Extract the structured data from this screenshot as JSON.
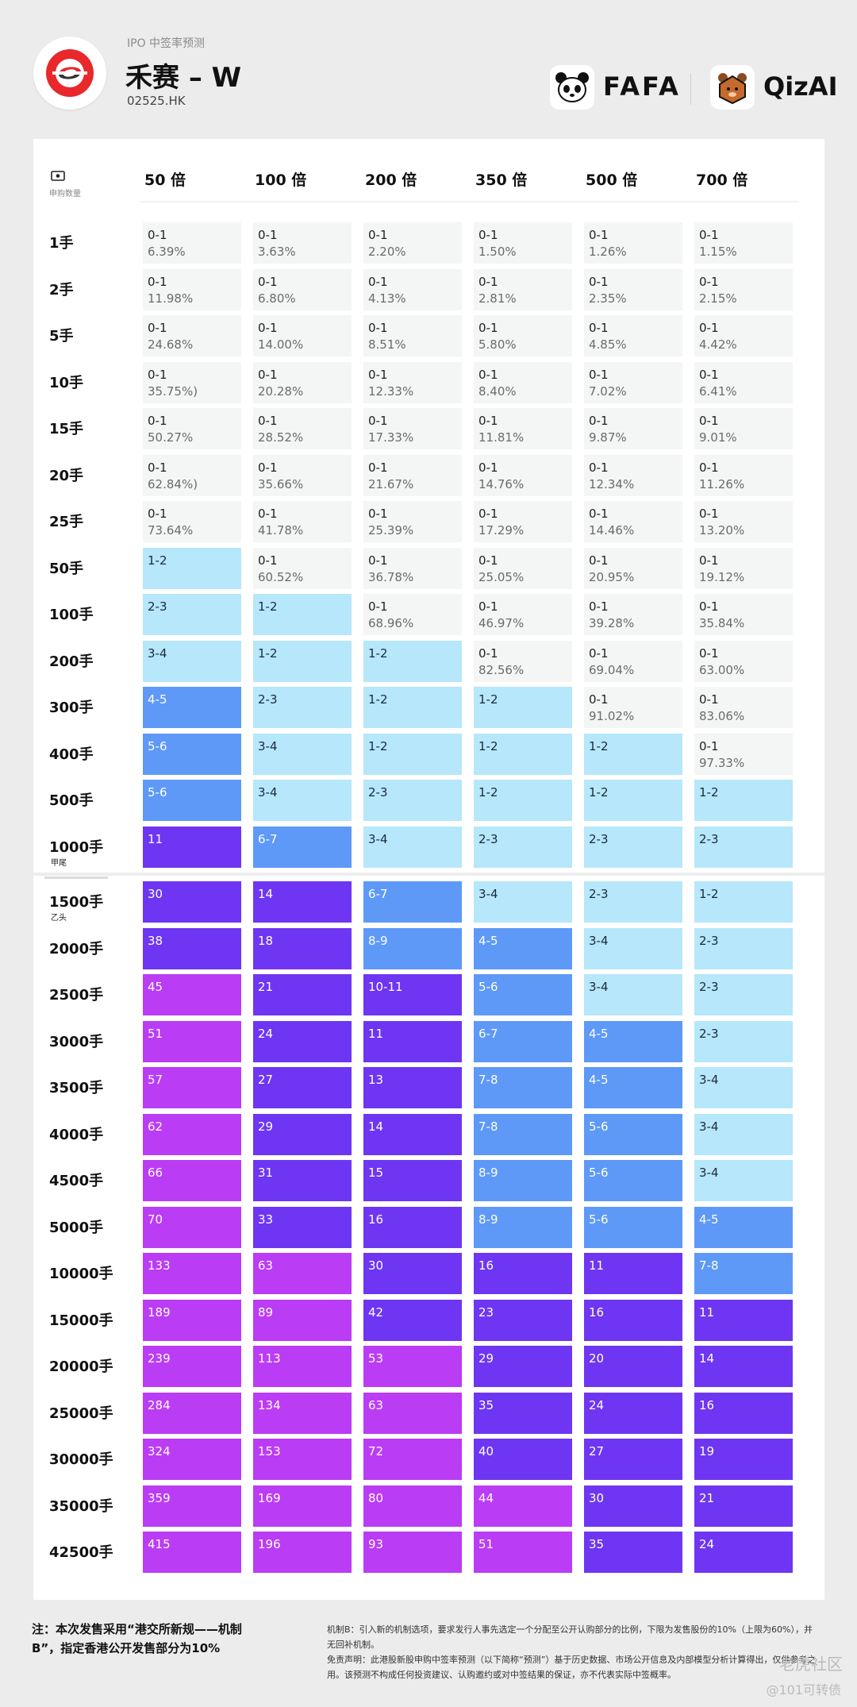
{
  "header": {
    "subtitle": "IPO 中签率预测",
    "title": "禾赛 – W",
    "code": "02525.HK",
    "brand1": "FAFA",
    "brand2": "QizAI"
  },
  "table": {
    "header_label": "申购数量",
    "columns": [
      "50 倍",
      "100 倍",
      "200 倍",
      "350 倍",
      "500 倍",
      "700 倍"
    ],
    "rows": [
      {
        "label": "1手",
        "note": "",
        "cells": [
          "0-1|6.39%",
          "0-1|3.63%",
          "0-1|2.20%",
          "0-1|1.50%",
          "0-1|1.26%",
          "0-1|1.15%"
        ]
      },
      {
        "label": "2手",
        "note": "",
        "cells": [
          "0-1|11.98%",
          "0-1|6.80%",
          "0-1|4.13%",
          "0-1|2.81%",
          "0-1|2.35%",
          "0-1|2.15%"
        ]
      },
      {
        "label": "5手",
        "note": "",
        "cells": [
          "0-1|24.68%",
          "0-1|14.00%",
          "0-1|8.51%",
          "0-1|5.80%",
          "0-1|4.85%",
          "0-1|4.42%"
        ]
      },
      {
        "label": "10手",
        "note": "",
        "cells": [
          "0-1|35.75%)",
          "0-1|20.28%",
          "0-1|12.33%",
          "0-1|8.40%",
          "0-1|7.02%",
          "0-1|6.41%"
        ]
      },
      {
        "label": "15手",
        "note": "",
        "cells": [
          "0-1|50.27%",
          "0-1|28.52%",
          "0-1|17.33%",
          "0-1|11.81%",
          "0-1|9.87%",
          "0-1|9.01%"
        ]
      },
      {
        "label": "20手",
        "note": "",
        "cells": [
          "0-1|62.84%)",
          "0-1|35.66%",
          "0-1|21.67%",
          "0-1|14.76%",
          "0-1|12.34%",
          "0-1|11.26%"
        ]
      },
      {
        "label": "25手",
        "note": "",
        "cells": [
          "0-1|73.64%",
          "0-1|41.78%",
          "0-1|25.39%",
          "0-1|17.29%",
          "0-1|14.46%",
          "0-1|13.20%"
        ]
      },
      {
        "label": "50手",
        "note": "",
        "cells": [
          "1-2",
          "0-1|60.52%",
          "0-1|36.78%",
          "0-1|25.05%",
          "0-1|20.95%",
          "0-1|19.12%"
        ]
      },
      {
        "label": "100手",
        "note": "",
        "cells": [
          "2-3",
          "1-2",
          "0-1|68.96%",
          "0-1|46.97%",
          "0-1|39.28%",
          "0-1|35.84%"
        ]
      },
      {
        "label": "200手",
        "note": "",
        "cells": [
          "3-4",
          "1-2",
          "1-2",
          "0-1|82.56%",
          "0-1|69.04%",
          "0-1|63.00%"
        ]
      },
      {
        "label": "300手",
        "note": "",
        "cells": [
          "4-5",
          "2-3",
          "1-2",
          "1-2",
          "0-1|91.02%",
          "0-1|83.06%"
        ]
      },
      {
        "label": "400手",
        "note": "",
        "cells": [
          "5-6",
          "3-4",
          "1-2",
          "1-2",
          "1-2",
          "0-1|97.33%"
        ]
      },
      {
        "label": "500手",
        "note": "",
        "cells": [
          "5-6",
          "3-4",
          "2-3",
          "1-2",
          "1-2",
          "1-2"
        ]
      },
      {
        "label": "1000手",
        "note": "甲尾",
        "cells": [
          "11",
          "6-7",
          "3-4",
          "2-3",
          "2-3",
          "2-3"
        ]
      },
      {
        "label": "1500手",
        "note": "乙头",
        "cells": [
          "30",
          "14",
          "6-7",
          "3-4",
          "2-3",
          "1-2"
        ]
      },
      {
        "label": "2000手",
        "note": "",
        "cells": [
          "38",
          "18",
          "8-9",
          "4-5",
          "3-4",
          "2-3"
        ]
      },
      {
        "label": "2500手",
        "note": "",
        "cells": [
          "45",
          "21",
          "10-11",
          "5-6",
          "3-4",
          "2-3"
        ]
      },
      {
        "label": "3000手",
        "note": "",
        "cells": [
          "51",
          "24",
          "11",
          "6-7",
          "4-5",
          "2-3"
        ]
      },
      {
        "label": "3500手",
        "note": "",
        "cells": [
          "57",
          "27",
          "13",
          "7-8",
          "4-5",
          "3-4"
        ]
      },
      {
        "label": "4000手",
        "note": "",
        "cells": [
          "62",
          "29",
          "14",
          "7-8",
          "5-6",
          "3-4"
        ]
      },
      {
        "label": "4500手",
        "note": "",
        "cells": [
          "66",
          "31",
          "15",
          "8-9",
          "5-6",
          "3-4"
        ]
      },
      {
        "label": "5000手",
        "note": "",
        "cells": [
          "70",
          "33",
          "16",
          "8-9",
          "5-6",
          "4-5"
        ]
      },
      {
        "label": "10000手",
        "note": "",
        "cells": [
          "133",
          "63",
          "30",
          "16",
          "11",
          "7-8"
        ]
      },
      {
        "label": "15000手",
        "note": "",
        "cells": [
          "189",
          "89",
          "42",
          "23",
          "16",
          "11"
        ]
      },
      {
        "label": "20000手",
        "note": "",
        "cells": [
          "239",
          "113",
          "53",
          "29",
          "20",
          "14"
        ]
      },
      {
        "label": "25000手",
        "note": "",
        "cells": [
          "284",
          "134",
          "63",
          "35",
          "24",
          "16"
        ]
      },
      {
        "label": "30000手",
        "note": "",
        "cells": [
          "324",
          "153",
          "72",
          "40",
          "27",
          "19"
        ]
      },
      {
        "label": "35000手",
        "note": "",
        "cells": [
          "359",
          "169",
          "80",
          "44",
          "30",
          "21"
        ]
      },
      {
        "label": "42500手",
        "note": "",
        "cells": [
          "415",
          "196",
          "93",
          "51",
          "35",
          "24"
        ]
      }
    ],
    "colors": {
      "gray": "#f4f5f5",
      "light_blue": "#b6e7fb",
      "blue": "#5e99f8",
      "violet": "#6e36f2",
      "magenta": "#bb3cf5"
    }
  },
  "footer": {
    "note_left": "注：本次发售采用“港交所新规——机制B”，指定香港公开发售部分为10%",
    "note_right_1": "机制B：引入新的机制选项，要求发行人事先选定一个分配至公开认购部分的比例，下限为发售股份的10%（上限为60%），并无回补机制。",
    "note_right_2": "免责声明：此港股新股申购中签率预测（以下简称“预测”）基于历史数据、市场公开信息及内部模型分析计算得出，仅供参考之用。该预测不构成任何投资建议、认购邀约或对中签结果的保证，亦不代表实际中签概率。",
    "watermark_1": "老虎社区",
    "watermark_2": "@101可转债"
  }
}
